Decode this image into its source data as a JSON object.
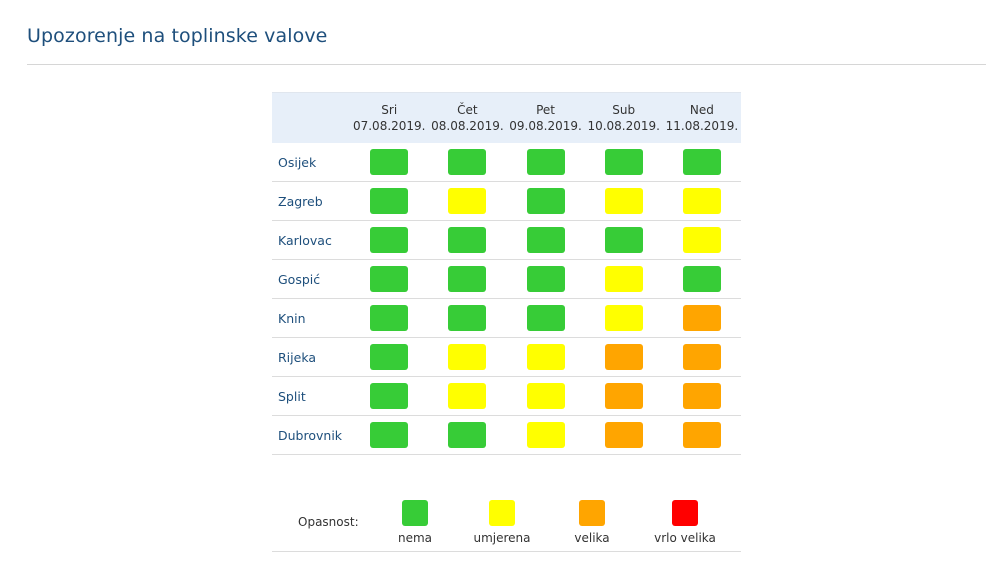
{
  "page": {
    "title": "Upozorenje na toplinske valove"
  },
  "table": {
    "days": [
      {
        "name": "Sri",
        "date": "07.08.2019."
      },
      {
        "name": "Čet",
        "date": "08.08.2019."
      },
      {
        "name": "Pet",
        "date": "09.08.2019."
      },
      {
        "name": "Sub",
        "date": "10.08.2019."
      },
      {
        "name": "Ned",
        "date": "11.08.2019."
      }
    ],
    "rows": [
      {
        "city": "Osijek",
        "levels": [
          "nema",
          "nema",
          "nema",
          "nema",
          "nema"
        ]
      },
      {
        "city": "Zagreb",
        "levels": [
          "nema",
          "umjerena",
          "nema",
          "umjerena",
          "umjerena"
        ]
      },
      {
        "city": "Karlovac",
        "levels": [
          "nema",
          "nema",
          "nema",
          "nema",
          "umjerena"
        ]
      },
      {
        "city": "Gospić",
        "levels": [
          "nema",
          "nema",
          "nema",
          "umjerena",
          "nema"
        ]
      },
      {
        "city": "Knin",
        "levels": [
          "nema",
          "nema",
          "nema",
          "umjerena",
          "velika"
        ]
      },
      {
        "city": "Rijeka",
        "levels": [
          "nema",
          "umjerena",
          "umjerena",
          "velika",
          "velika"
        ]
      },
      {
        "city": "Split",
        "levels": [
          "nema",
          "umjerena",
          "umjerena",
          "velika",
          "velika"
        ]
      },
      {
        "city": "Dubrovnik",
        "levels": [
          "nema",
          "nema",
          "umjerena",
          "velika",
          "velika"
        ]
      }
    ]
  },
  "legend": {
    "label": "Opasnost:",
    "items": [
      {
        "level": "nema",
        "label": "nema"
      },
      {
        "level": "umjerena",
        "label": "umjerena"
      },
      {
        "level": "velika",
        "label": "velika"
      },
      {
        "level": "vrlo velika",
        "label": "vrlo velika"
      }
    ]
  },
  "colors": {
    "nema": "#37cc37",
    "umjerena": "#ffff00",
    "velika": "#ffa500",
    "vrlo velika": "#ff0000",
    "title": "#1e4f7c",
    "header_bg": "#e7eff9"
  }
}
